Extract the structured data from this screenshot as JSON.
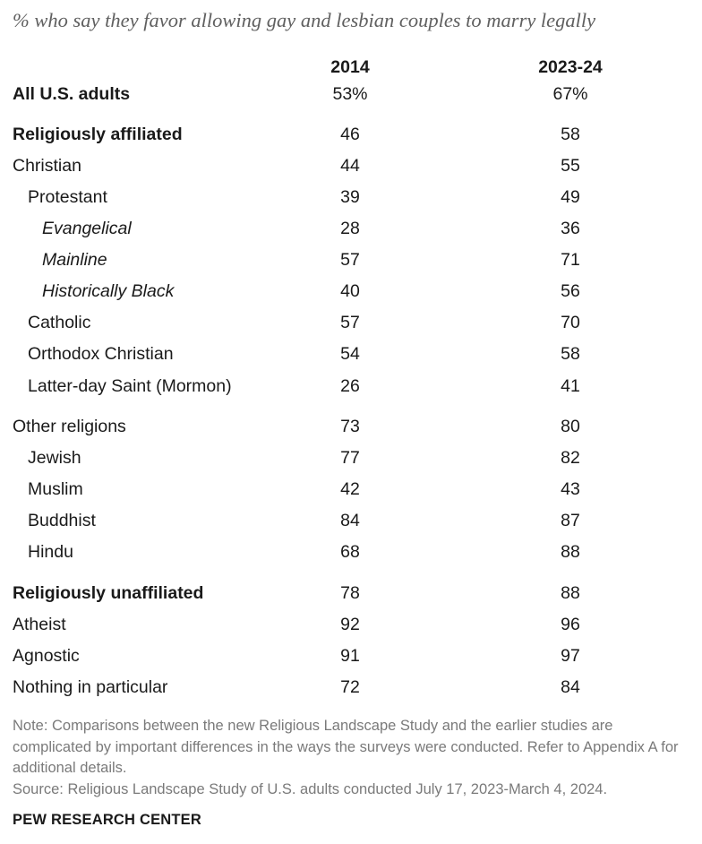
{
  "chart_data": {
    "type": "table",
    "subtitle": "% who say they favor allowing gay and lesbian couples to marry legally",
    "columns": [
      "2014",
      "2023-24"
    ],
    "rows": [
      {
        "label": "All U.S. adults",
        "values": [
          "53%",
          "67%"
        ],
        "style": "bold",
        "indent": 0
      },
      {
        "label": "Religiously affiliated",
        "values": [
          "46",
          "58"
        ],
        "style": "bold",
        "indent": 0
      },
      {
        "label": "Christian",
        "values": [
          "44",
          "55"
        ],
        "style": "normal",
        "indent": 0
      },
      {
        "label": "Protestant",
        "values": [
          "39",
          "49"
        ],
        "style": "normal",
        "indent": 1
      },
      {
        "label": "Evangelical",
        "values": [
          "28",
          "36"
        ],
        "style": "italic",
        "indent": 2
      },
      {
        "label": "Mainline",
        "values": [
          "57",
          "71"
        ],
        "style": "italic",
        "indent": 2
      },
      {
        "label": "Historically Black",
        "values": [
          "40",
          "56"
        ],
        "style": "italic",
        "indent": 2
      },
      {
        "label": "Catholic",
        "values": [
          "57",
          "70"
        ],
        "style": "normal",
        "indent": 1
      },
      {
        "label": "Orthodox Christian",
        "values": [
          "54",
          "58"
        ],
        "style": "normal",
        "indent": 1
      },
      {
        "label": "Latter-day Saint (Mormon)",
        "values": [
          "26",
          "41"
        ],
        "style": "normal",
        "indent": 1
      },
      {
        "label": "Other religions",
        "values": [
          "73",
          "80"
        ],
        "style": "normal",
        "indent": 0
      },
      {
        "label": "Jewish",
        "values": [
          "77",
          "82"
        ],
        "style": "normal",
        "indent": 1
      },
      {
        "label": "Muslim",
        "values": [
          "42",
          "43"
        ],
        "style": "normal",
        "indent": 1
      },
      {
        "label": "Buddhist",
        "values": [
          "84",
          "87"
        ],
        "style": "normal",
        "indent": 1
      },
      {
        "label": "Hindu",
        "values": [
          "68",
          "88"
        ],
        "style": "normal",
        "indent": 1
      },
      {
        "label": "Religiously unaffiliated",
        "values": [
          "78",
          "88"
        ],
        "style": "bold",
        "indent": 0
      },
      {
        "label": "Atheist",
        "values": [
          "92",
          "96"
        ],
        "style": "normal",
        "indent": 0
      },
      {
        "label": "Agnostic",
        "values": [
          "91",
          "97"
        ],
        "style": "normal",
        "indent": 0
      },
      {
        "label": "Nothing in particular",
        "values": [
          "72",
          "84"
        ],
        "style": "normal",
        "indent": 0
      }
    ]
  },
  "footer": {
    "note": "Note: Comparisons between the new Religious Landscape Study and the earlier studies are complicated by important differences in the ways the surveys were conducted. Refer to Appendix A for additional details.",
    "source": "Source: Religious Landscape Study of U.S. adults conducted July 17, 2023-March 4, 2024.",
    "brand": "PEW RESEARCH CENTER"
  }
}
